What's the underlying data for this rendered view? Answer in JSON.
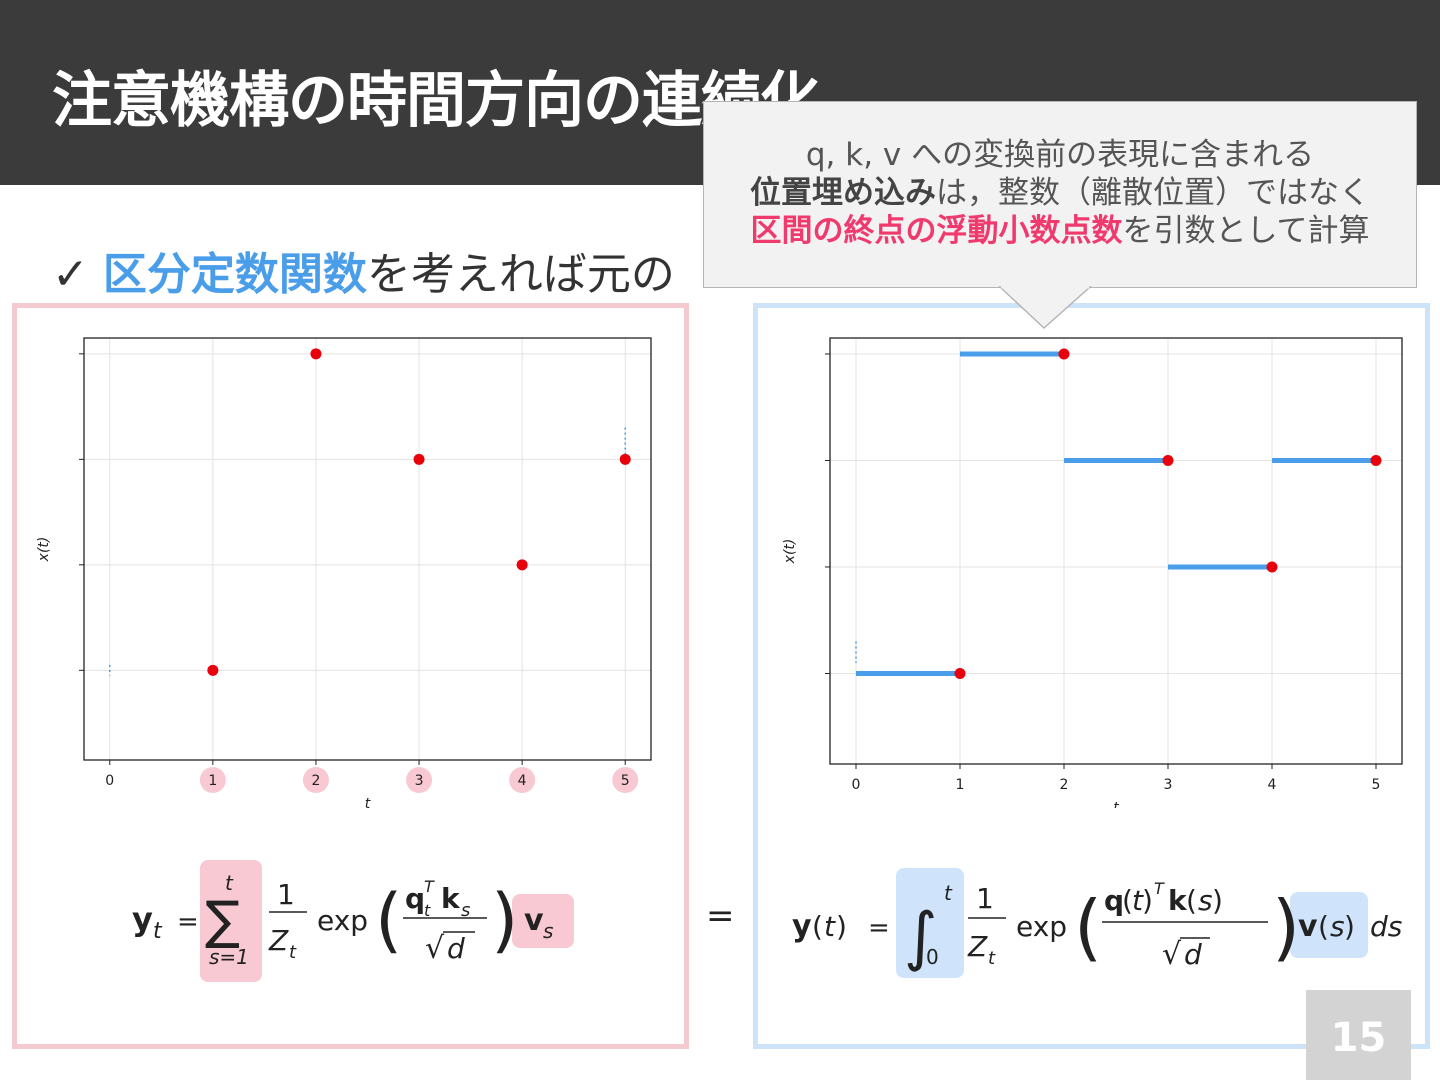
{
  "slide": {
    "title": "注意機構の時間方向の連続化",
    "bullet": {
      "check": "✓",
      "highlight": "区分定数関数",
      "rest": "を考えれば元の"
    },
    "page_number": "15"
  },
  "callout": {
    "line1": "q, k, v への変換前の表現に含まれる",
    "line2_bold": "位置埋め込み",
    "line2_rest": "は，整数（離散位置）ではなく",
    "line3_pink": "区間の終点の浮動小数点数",
    "line3_rest": "を引数として計算"
  },
  "colors": {
    "header": "#3b3b3b",
    "accent_blue": "#4a9de8",
    "accent_pink": "#f03a6e",
    "panel_left": "#f5c9d0",
    "panel_right": "#cde4f8",
    "point": "#e8000b",
    "segment": "#4a9de8"
  },
  "chart_data": [
    {
      "type": "scatter",
      "xlabel": "t",
      "ylabel": "x(t)",
      "x": [
        1,
        2,
        3,
        4,
        5
      ],
      "y": [
        1,
        4,
        3,
        2,
        3
      ],
      "xlim": [
        -0.25,
        5.25
      ],
      "ylim": [
        0.15,
        4.15
      ],
      "xticks": [
        "0",
        "1",
        "2",
        "3",
        "4",
        "5"
      ],
      "highlighted_ticks": [
        "1",
        "2",
        "3",
        "4",
        "5"
      ],
      "grid": true
    },
    {
      "type": "line",
      "xlabel": "t",
      "ylabel": "x(t)",
      "segments": [
        {
          "x0": 0,
          "x1": 1,
          "y": 1
        },
        {
          "x0": 1,
          "x1": 2,
          "y": 4
        },
        {
          "x0": 2,
          "x1": 3,
          "y": 3
        },
        {
          "x0": 3,
          "x1": 4,
          "y": 2
        },
        {
          "x0": 4,
          "x1": 5,
          "y": 3
        }
      ],
      "xlim": [
        -0.25,
        5.25
      ],
      "ylim": [
        0.15,
        4.15
      ],
      "xticks": [
        "0",
        "1",
        "2",
        "3",
        "4",
        "5"
      ],
      "grid": true
    }
  ],
  "formulas": {
    "equals": "="
  }
}
